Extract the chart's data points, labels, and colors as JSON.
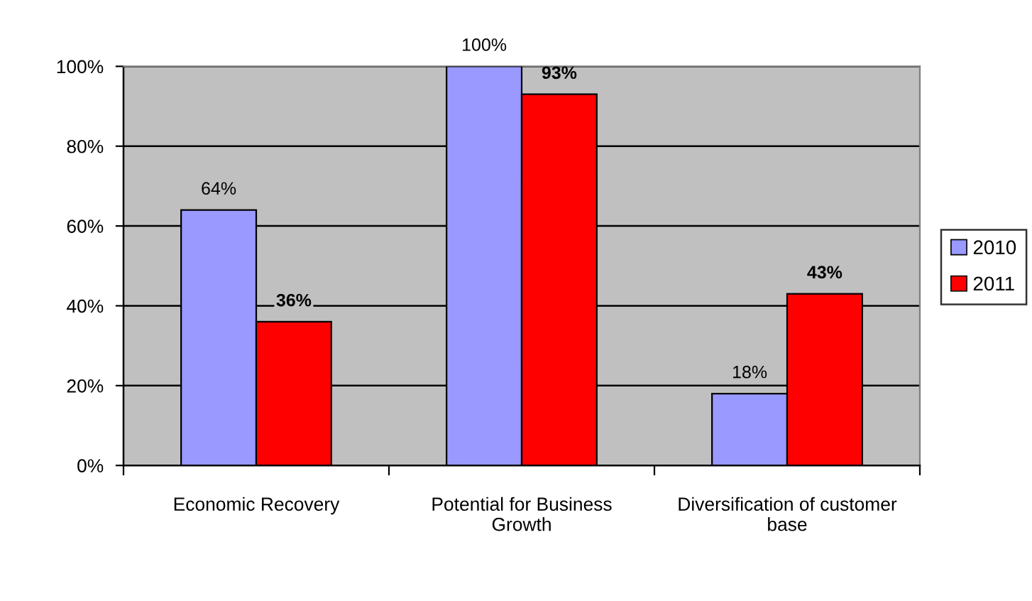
{
  "chart_data": {
    "type": "bar",
    "categories": [
      "Economic Recovery",
      "Potential for Business Growth",
      "Diversification of customer base"
    ],
    "series": [
      {
        "name": "2010",
        "color": "#9999ff",
        "values": [
          64,
          100,
          18
        ],
        "value_labels": [
          "64%",
          "100%",
          "18%"
        ]
      },
      {
        "name": "2011",
        "color": "#ff0000",
        "values": [
          36,
          93,
          43
        ],
        "value_labels": [
          "36%",
          "93%",
          "43%"
        ]
      }
    ],
    "ylim": [
      0,
      100
    ],
    "yticks": [
      {
        "value": 0,
        "label": "0%"
      },
      {
        "value": 20,
        "label": "20%"
      },
      {
        "value": 40,
        "label": "40%"
      },
      {
        "value": 60,
        "label": "60%"
      },
      {
        "value": 80,
        "label": "80%"
      },
      {
        "value": 100,
        "label": "100%"
      }
    ],
    "grid": "y",
    "legend": "right"
  }
}
